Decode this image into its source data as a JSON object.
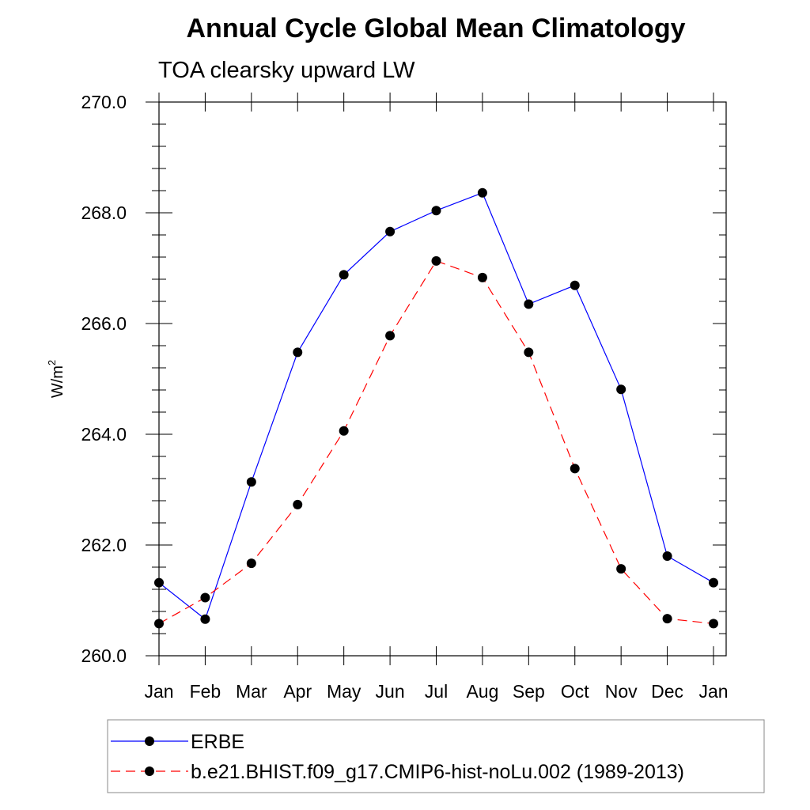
{
  "chart_data": {
    "type": "line",
    "title": "Annual Cycle Global Mean Climatology",
    "subtitle": "TOA clearsky upward LW",
    "xlabel": "",
    "ylabel": "W/m",
    "ylabel_superscript": "2",
    "categories": [
      "Jan",
      "Feb",
      "Mar",
      "Apr",
      "May",
      "Jun",
      "Jul",
      "Aug",
      "Sep",
      "Oct",
      "Nov",
      "Dec",
      "Jan"
    ],
    "ylim": [
      260.0,
      270.0
    ],
    "yticks": [
      "260.0",
      "262.0",
      "264.0",
      "266.0",
      "268.0",
      "270.0"
    ],
    "series": [
      {
        "name": "ERBE",
        "color": "#0000ff",
        "line_style": "solid",
        "values": [
          261.32,
          260.66,
          263.14,
          265.48,
          266.88,
          267.66,
          268.04,
          268.36,
          266.35,
          266.69,
          264.81,
          261.8,
          261.32
        ]
      },
      {
        "name": "b.e21.BHIST.f09_g17.CMIP6-hist-noLu.002 (1989-2013)",
        "color": "#ff0000",
        "line_style": "dashed",
        "values": [
          260.58,
          261.05,
          261.67,
          262.73,
          264.06,
          265.78,
          267.13,
          266.83,
          265.48,
          263.38,
          261.57,
          260.67,
          260.58
        ]
      }
    ],
    "legend_position": "bottom"
  }
}
